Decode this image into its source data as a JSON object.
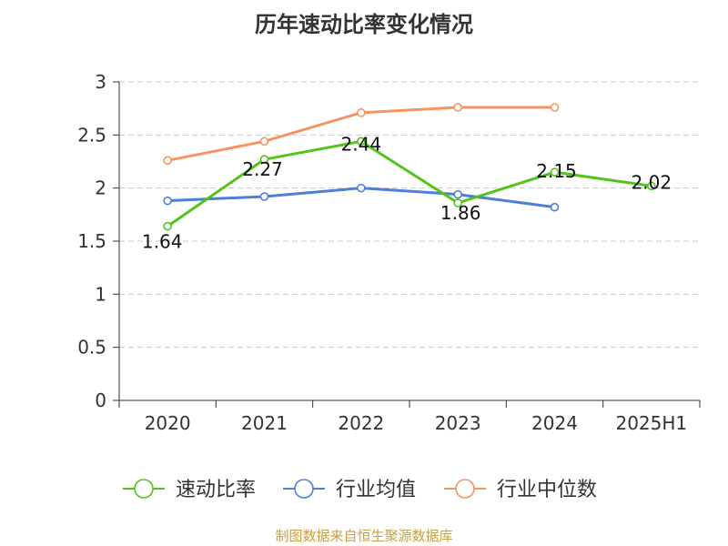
{
  "chart_data": {
    "type": "line",
    "title": "历年速动比率变化情况",
    "categories": [
      "2020",
      "2021",
      "2022",
      "2023",
      "2024",
      "2025H1"
    ],
    "ylim": [
      0,
      3
    ],
    "yticks": [
      "0",
      "0.5",
      "1",
      "1.5",
      "2",
      "2.5",
      "3"
    ],
    "grid": true,
    "legend_position": "bottom",
    "series": [
      {
        "name": "速动比率",
        "color": "#52c41a",
        "values": [
          1.64,
          2.27,
          2.44,
          1.86,
          2.15,
          2.02
        ],
        "labels": [
          "1.64",
          "2.27",
          "2.44",
          "1.86",
          "2.15",
          "2.02"
        ]
      },
      {
        "name": "行业均值",
        "color": "#4f7fd6",
        "values": [
          1.88,
          1.92,
          2.0,
          1.94,
          1.82,
          null
        ]
      },
      {
        "name": "行业中位数",
        "color": "#f59462",
        "values": [
          2.26,
          2.44,
          2.71,
          2.76,
          2.76,
          null
        ]
      }
    ]
  },
  "footer": {
    "source": "制图数据来自恒生聚源数据库"
  }
}
